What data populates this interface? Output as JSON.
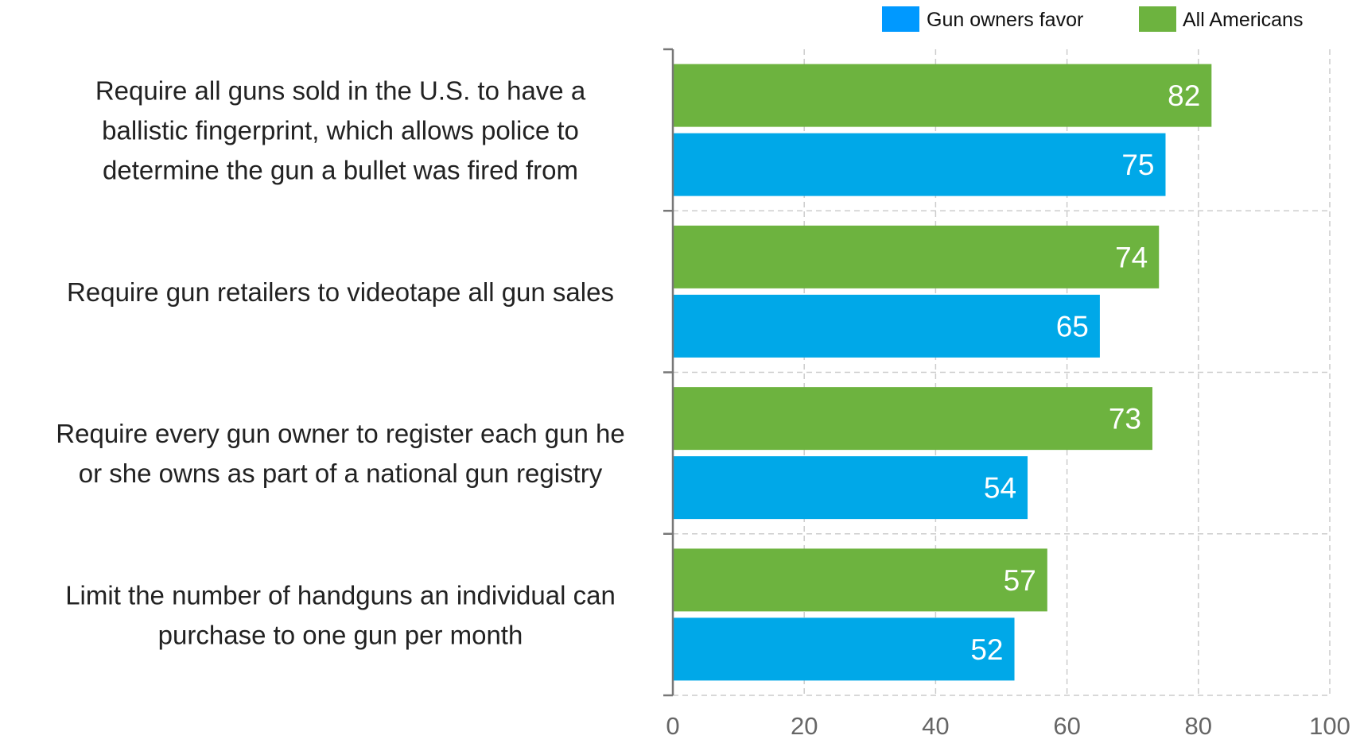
{
  "chart_data": {
    "type": "bar",
    "orientation": "horizontal",
    "title": "",
    "xlabel": "",
    "ylabel": "",
    "xlim": [
      0,
      100
    ],
    "ticks": [
      0,
      20,
      40,
      60,
      80,
      100
    ],
    "grid": true,
    "legend_position": "top-right",
    "categories": [
      "Require all guns sold in the U.S. to have a ballistic fingerprint, which allows police to determine the gun a bullet was fired from",
      "Require gun retailers to videotape all gun sales",
      "Require every gun owner to register each gun he or she owns as part of a national gun registry",
      "Limit the number of handguns an individual can purchase to one gun per month"
    ],
    "category_lines": [
      [
        "Require all guns sold in the U.S. to have a",
        "ballistic fingerprint, which allows police to",
        "determine the gun a bullet was fired from"
      ],
      [
        "Require gun retailers to videotape all gun sales"
      ],
      [
        "Require every gun owner to register each gun he",
        "or she owns as part of a national gun registry"
      ],
      [
        "Limit the number of handguns an individual can",
        "purchase to one gun per month"
      ]
    ],
    "series": [
      {
        "name": "All Americans",
        "color": "#6db33f",
        "values": [
          82,
          74,
          73,
          57
        ]
      },
      {
        "name": "Gun owners favor",
        "color": "#00a8e8",
        "values": [
          75,
          65,
          54,
          52
        ]
      }
    ],
    "legend": [
      {
        "name": "Gun owners favor",
        "color": "#0099ff"
      },
      {
        "name": "All Americans",
        "color": "#6db33f"
      }
    ]
  }
}
